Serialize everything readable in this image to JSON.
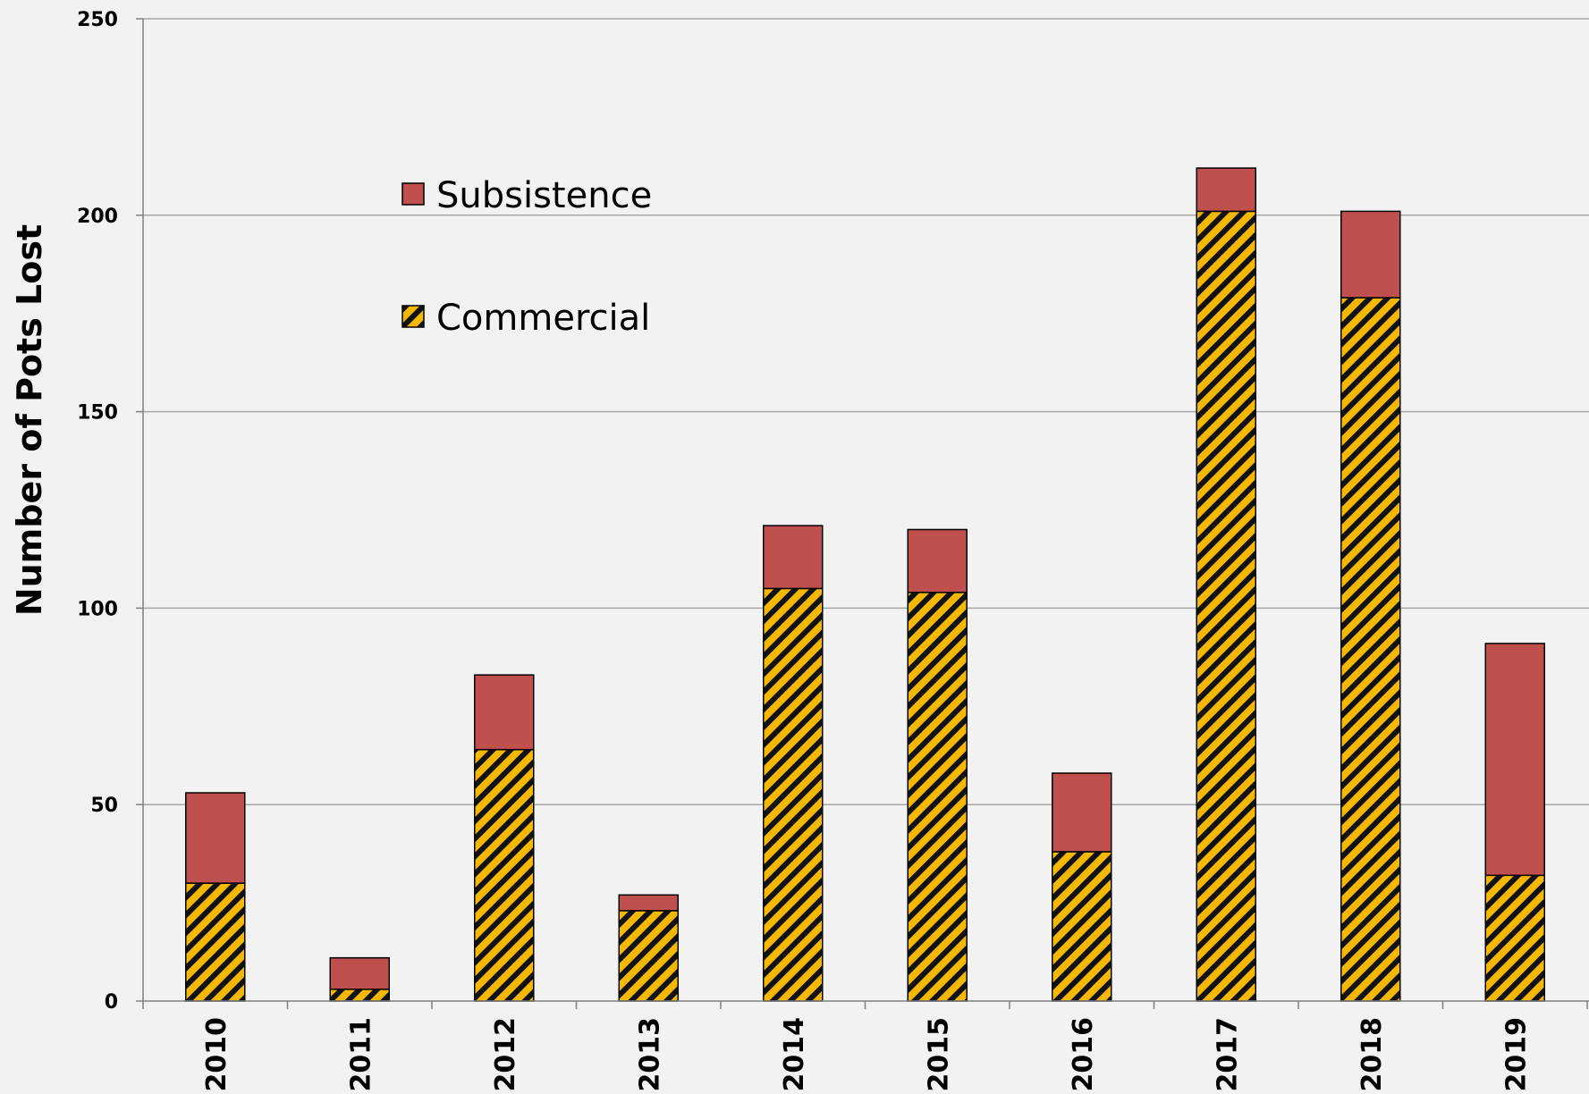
{
  "chart_data": {
    "type": "bar",
    "stacked": true,
    "categories": [
      "2010",
      "2011",
      "2012",
      "2013",
      "2014",
      "2015",
      "2016",
      "2017",
      "2018",
      "2019"
    ],
    "series": [
      {
        "name": "Commercial",
        "values": [
          30,
          3,
          64,
          23,
          105,
          104,
          38,
          201,
          179,
          32
        ],
        "color": "#f5b800",
        "pattern": "diagonal-stripes"
      },
      {
        "name": "Subsistence",
        "values": [
          23,
          8,
          19,
          4,
          16,
          16,
          20,
          11,
          22,
          59
        ],
        "color": "#c0504d"
      }
    ],
    "title": "",
    "xlabel": "",
    "ylabel": "Number of Pots Lost",
    "ylim": [
      0,
      250
    ],
    "yticks": [
      0,
      50,
      100,
      150,
      200,
      250
    ],
    "grid": true,
    "legend_placement": "top-left"
  }
}
